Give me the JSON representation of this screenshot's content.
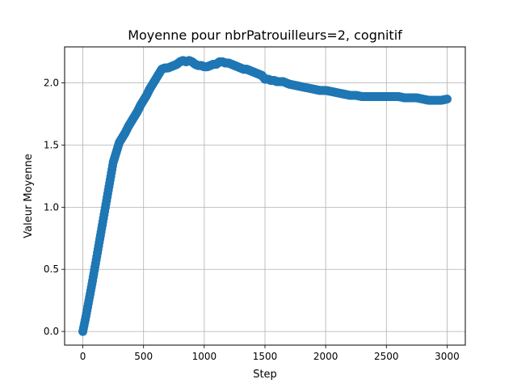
{
  "chart_data": {
    "type": "scatter",
    "title": "Moyenne pour nbrPatrouilleurs=2, cognitif",
    "xlabel": "Step",
    "ylabel": "Valeur Moyenne",
    "xlim": [
      -150,
      3150
    ],
    "ylim": [
      -0.11,
      2.29
    ],
    "xticks": [
      0,
      500,
      1000,
      1500,
      2000,
      2500,
      3000
    ],
    "yticks": [
      0.0,
      0.5,
      1.0,
      1.5,
      2.0
    ],
    "xtick_labels": [
      "0",
      "500",
      "1000",
      "1500",
      "2000",
      "2500",
      "3000"
    ],
    "ytick_labels": [
      "0.0",
      "0.5",
      "1.0",
      "1.5",
      "2.0"
    ],
    "grid": true,
    "marker_color": "#1f77b4",
    "series": [
      {
        "x": [
          0,
          25,
          50,
          75,
          100,
          125,
          150,
          175,
          200,
          225,
          250,
          275,
          300,
          325,
          350,
          375,
          400,
          425,
          450,
          475,
          500,
          525,
          550,
          575,
          600,
          625,
          650,
          675,
          700,
          725,
          750,
          775,
          800,
          825,
          850,
          875,
          900,
          925,
          950,
          975,
          1000,
          1025,
          1050,
          1075,
          1100,
          1125,
          1150,
          1175,
          1200,
          1225,
          1250,
          1275,
          1300,
          1325,
          1350,
          1375,
          1400,
          1425,
          1450,
          1475,
          1500,
          1525,
          1550,
          1575,
          1600,
          1650,
          1700,
          1750,
          1800,
          1850,
          1900,
          1950,
          2000,
          2050,
          2100,
          2150,
          2200,
          2250,
          2300,
          2350,
          2400,
          2450,
          2500,
          2550,
          2600,
          2650,
          2700,
          2750,
          2800,
          2850,
          2900,
          2950,
          3000
        ],
        "y": [
          0.0,
          0.12,
          0.25,
          0.38,
          0.52,
          0.66,
          0.8,
          0.94,
          1.08,
          1.22,
          1.36,
          1.44,
          1.52,
          1.56,
          1.6,
          1.65,
          1.69,
          1.73,
          1.77,
          1.82,
          1.86,
          1.9,
          1.95,
          1.99,
          2.03,
          2.07,
          2.11,
          2.12,
          2.12,
          2.13,
          2.14,
          2.15,
          2.17,
          2.18,
          2.17,
          2.18,
          2.17,
          2.15,
          2.14,
          2.14,
          2.13,
          2.13,
          2.14,
          2.15,
          2.15,
          2.17,
          2.17,
          2.16,
          2.16,
          2.15,
          2.14,
          2.13,
          2.12,
          2.11,
          2.11,
          2.1,
          2.09,
          2.08,
          2.07,
          2.06,
          2.03,
          2.03,
          2.02,
          2.02,
          2.01,
          2.01,
          1.99,
          1.98,
          1.97,
          1.96,
          1.95,
          1.94,
          1.94,
          1.93,
          1.92,
          1.91,
          1.9,
          1.9,
          1.89,
          1.89,
          1.89,
          1.89,
          1.89,
          1.89,
          1.89,
          1.88,
          1.88,
          1.88,
          1.87,
          1.86,
          1.86,
          1.86,
          1.87
        ]
      }
    ]
  }
}
